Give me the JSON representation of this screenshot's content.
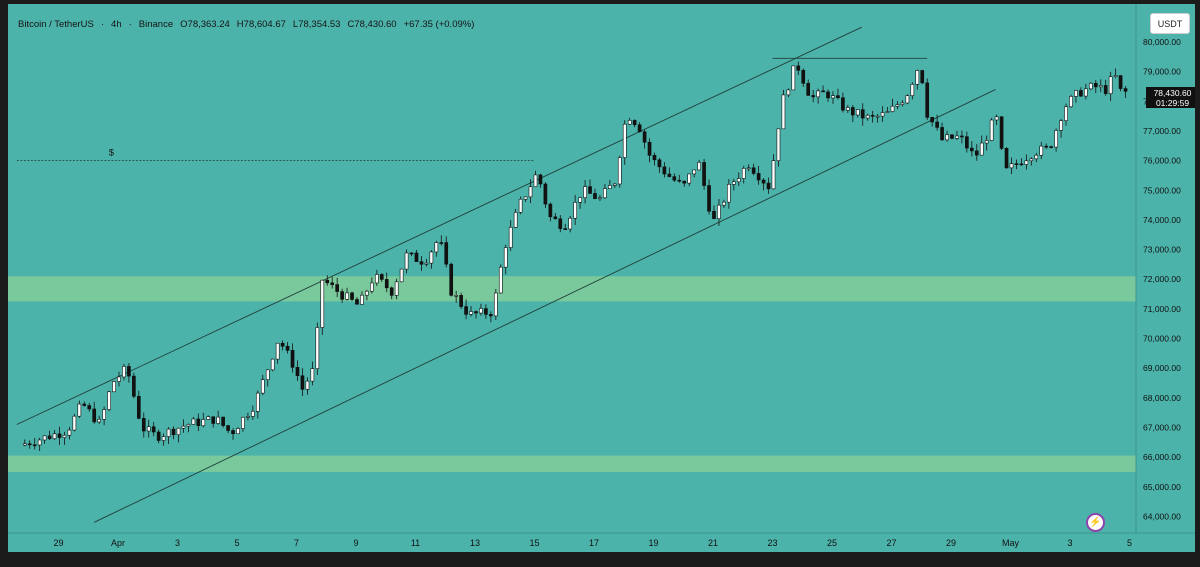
{
  "header": {
    "symbol": "Bitcoin / TetherUS",
    "interval": "4h",
    "exchange": "Binance",
    "open": "O78,363.24",
    "high": "H78,604.67",
    "low": "L78,354.53",
    "close": "C78,430.60",
    "change": "+67.35 (+0.09%)",
    "sep": "·"
  },
  "currency_button": "USDT",
  "last_price": {
    "value": "78,430.60",
    "countdown": "01:29:59"
  },
  "icons": {
    "alert": "lightning-icon"
  },
  "colors": {
    "background": "#4cb3aa",
    "zone": "#7fcb9a",
    "candle_up": "#ffffff",
    "candle_down": "#111111",
    "line": "#1f3f3a"
  },
  "chart_data": {
    "type": "candlestick",
    "ylim": [
      63700,
      80400
    ],
    "y_ticks": [
      "80,000.00",
      "79,000.00",
      "78,000.00",
      "77,000.00",
      "76,000.00",
      "75,000.00",
      "74,000.00",
      "73,000.00",
      "72,000.00",
      "71,000.00",
      "70,000.00",
      "69,000.00",
      "68,000.00",
      "67,000.00",
      "66,000.00",
      "65,000.00",
      "64,000.00"
    ],
    "x_ticks": [
      "29",
      "Apr",
      "3",
      "5",
      "7",
      "9",
      "11",
      "13",
      "15",
      "17",
      "19",
      "21",
      "23",
      "25",
      "27",
      "29",
      "May",
      "3",
      "5"
    ],
    "x_range_days": [
      -3.4,
      35.2
    ],
    "zones": [
      {
        "from": 71250,
        "to": 72100
      },
      {
        "from": 65500,
        "to": 66050
      }
    ],
    "horizontal_lines": [
      {
        "price": 76000,
        "x_from": -3.4,
        "x_to": 14.0,
        "label": "$"
      },
      {
        "price": 79450,
        "x_from": 22.0,
        "x_to": 27.2,
        "label": ""
      }
    ],
    "trend_lines": [
      {
        "x1": -3.4,
        "y1": 67100,
        "x2": 25.0,
        "y2": 80500
      },
      {
        "x1": -0.8,
        "y1": 63800,
        "x2": 29.5,
        "y2": 78400
      }
    ],
    "segments": [
      {
        "t": -3.3,
        "p": 66400
      },
      {
        "t": -1.7,
        "p": 66900
      },
      {
        "t": -1.2,
        "p": 67800
      },
      {
        "t": -0.6,
        "p": 67100
      },
      {
        "t": -0.2,
        "p": 68500
      },
      {
        "t": 0.3,
        "p": 69000
      },
      {
        "t": 0.8,
        "p": 67000
      },
      {
        "t": 1.3,
        "p": 66700
      },
      {
        "t": 2.3,
        "p": 67100
      },
      {
        "t": 3.3,
        "p": 67300
      },
      {
        "t": 3.8,
        "p": 66800
      },
      {
        "t": 4.6,
        "p": 67800
      },
      {
        "t": 5.4,
        "p": 70000
      },
      {
        "t": 5.9,
        "p": 69100
      },
      {
        "t": 6.2,
        "p": 68300
      },
      {
        "t": 6.6,
        "p": 69000
      },
      {
        "t": 6.85,
        "p": 72000
      },
      {
        "t": 7.5,
        "p": 71500
      },
      {
        "t": 8.1,
        "p": 71100
      },
      {
        "t": 8.6,
        "p": 72100
      },
      {
        "t": 9.2,
        "p": 71600
      },
      {
        "t": 9.7,
        "p": 72800
      },
      {
        "t": 10.3,
        "p": 72600
      },
      {
        "t": 10.8,
        "p": 73400
      },
      {
        "t": 11.2,
        "p": 71600
      },
      {
        "t": 11.8,
        "p": 70800
      },
      {
        "t": 12.6,
        "p": 70900
      },
      {
        "t": 13.0,
        "p": 73100
      },
      {
        "t": 13.5,
        "p": 74500
      },
      {
        "t": 14.1,
        "p": 75600
      },
      {
        "t": 14.5,
        "p": 74100
      },
      {
        "t": 15.0,
        "p": 73800
      },
      {
        "t": 15.6,
        "p": 75000
      },
      {
        "t": 16.2,
        "p": 74700
      },
      {
        "t": 16.7,
        "p": 75300
      },
      {
        "t": 17.1,
        "p": 77600
      },
      {
        "t": 17.5,
        "p": 77200
      },
      {
        "t": 17.9,
        "p": 76100
      },
      {
        "t": 18.5,
        "p": 75500
      },
      {
        "t": 19.0,
        "p": 75100
      },
      {
        "t": 19.5,
        "p": 76000
      },
      {
        "t": 20.0,
        "p": 73900
      },
      {
        "t": 20.6,
        "p": 75200
      },
      {
        "t": 21.2,
        "p": 75900
      },
      {
        "t": 21.9,
        "p": 75100
      },
      {
        "t": 22.3,
        "p": 77900
      },
      {
        "t": 22.8,
        "p": 79300
      },
      {
        "t": 23.3,
        "p": 78100
      },
      {
        "t": 23.8,
        "p": 78300
      },
      {
        "t": 24.5,
        "p": 77700
      },
      {
        "t": 25.3,
        "p": 77400
      },
      {
        "t": 25.9,
        "p": 77600
      },
      {
        "t": 26.5,
        "p": 78200
      },
      {
        "t": 26.95,
        "p": 79300
      },
      {
        "t": 27.2,
        "p": 77600
      },
      {
        "t": 27.7,
        "p": 76700
      },
      {
        "t": 28.3,
        "p": 76800
      },
      {
        "t": 28.8,
        "p": 76100
      },
      {
        "t": 29.3,
        "p": 77000
      },
      {
        "t": 29.5,
        "p": 77600
      },
      {
        "t": 29.8,
        "p": 75600
      },
      {
        "t": 30.2,
        "p": 75900
      },
      {
        "t": 30.8,
        "p": 76300
      },
      {
        "t": 31.3,
        "p": 76400
      },
      {
        "t": 31.8,
        "p": 77800
      },
      {
        "t": 32.3,
        "p": 78300
      },
      {
        "t": 32.8,
        "p": 78500
      },
      {
        "t": 33.2,
        "p": 78400
      },
      {
        "t": 33.5,
        "p": 78900
      },
      {
        "t": 33.75,
        "p": 78200
      },
      {
        "t": 34.0,
        "p": 78430
      }
    ],
    "candles_per_day": 6,
    "x_label": "",
    "y_label": "",
    "grid": false
  }
}
